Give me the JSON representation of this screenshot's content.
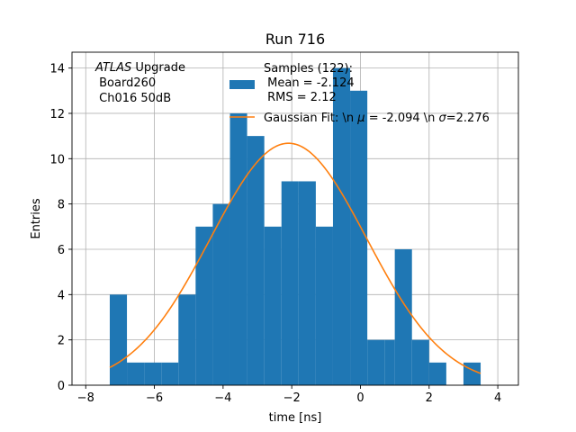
{
  "chart_data": {
    "type": "bar",
    "title": "Run 716",
    "xlabel": "time [ns]",
    "ylabel": "Entries",
    "xlim": [
      -8.4,
      4.6
    ],
    "ylim": [
      0,
      14.7
    ],
    "grid": true,
    "x_ticks": [
      -8,
      -6,
      -4,
      -2,
      0,
      2,
      4
    ],
    "y_ticks": [
      0,
      2,
      4,
      6,
      8,
      10,
      12,
      14
    ],
    "bin_edges": [
      -7.3,
      -6.8,
      -6.3,
      -5.8,
      -5.3,
      -4.8,
      -4.3,
      -3.8,
      -3.3,
      -2.8,
      -2.3,
      -1.8,
      -1.3,
      -0.8,
      -0.3,
      0.2,
      0.7,
      1.0,
      1.5,
      2.0,
      2.5,
      3.0,
      3.5
    ],
    "counts": [
      4,
      1,
      1,
      1,
      4,
      7,
      8,
      12,
      11,
      7,
      9,
      9,
      7,
      14,
      13,
      2,
      2,
      6,
      2,
      1,
      0,
      1
    ],
    "histogram_color": "#1f77b4",
    "fit": {
      "type": "gaussian",
      "mu": -2.094,
      "sigma": 2.276,
      "amplitude": 10.68,
      "x_range": [
        -7.3,
        3.5
      ],
      "color": "#ff7f0e"
    },
    "legend": {
      "placement": "top-center",
      "samples_label": "Samples (122):",
      "mean_label": " Mean = -2.124",
      "rms_label": " RMS = 2.12",
      "fit_label_prefix": "Gaussian Fit: \\n ",
      "fit_mu_symbol": "μ",
      "fit_mu_value": " = -2.094 \\n ",
      "fit_sigma_symbol": "σ",
      "fit_sigma_value": "=2.276"
    },
    "annotation": {
      "placement": "top-left",
      "atlas": "ATLAS",
      "upgrade": " Upgrade",
      "board": " Board260",
      "channel": " Ch016 50dB"
    }
  }
}
